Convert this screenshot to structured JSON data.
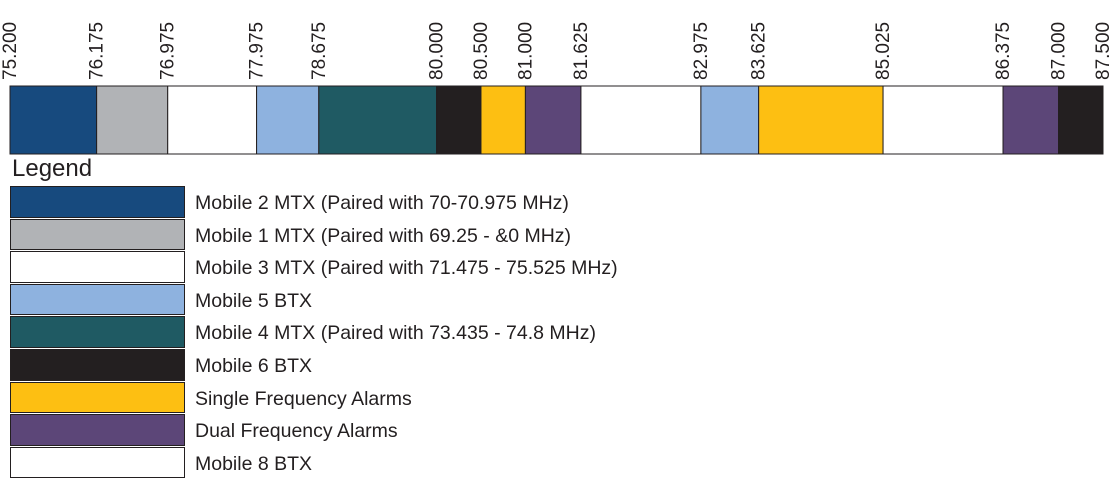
{
  "chart_data": {
    "type": "bar",
    "orientation": "horizontal-frequency-band",
    "xlim": [
      75.2,
      87.5
    ],
    "tick_labels": [
      "75.200",
      "76.175",
      "76.975",
      "77.975",
      "78.675",
      "80.000",
      "80.500",
      "81.000",
      "81.625",
      "82.975",
      "83.625",
      "85.025",
      "86.375",
      "87.000",
      "87.500"
    ],
    "segments": [
      {
        "start": 75.2,
        "end": 76.175,
        "category": "Mobile 2 MTX (Paired with 70-70.975 MHz)"
      },
      {
        "start": 76.175,
        "end": 76.975,
        "category": "Mobile 1 MTX (Paired with 69.25 - &0 MHz)"
      },
      {
        "start": 76.975,
        "end": 77.975,
        "category": "Mobile 3 MTX (Paired with 71.475 - 75.525 MHz)"
      },
      {
        "start": 77.975,
        "end": 78.675,
        "category": "Mobile 5 BTX"
      },
      {
        "start": 78.675,
        "end": 80.0,
        "category": "Mobile 4 MTX (Paired with 73.435 - 74.8 MHz)"
      },
      {
        "start": 80.0,
        "end": 80.5,
        "category": "Mobile 6 BTX"
      },
      {
        "start": 80.5,
        "end": 81.0,
        "category": "Single Frequency Alarms"
      },
      {
        "start": 81.0,
        "end": 81.625,
        "category": "Dual Frequency Alarms"
      },
      {
        "start": 81.625,
        "end": 82.975,
        "category": "Mobile 8 BTX"
      },
      {
        "start": 82.975,
        "end": 83.625,
        "category": "Mobile 5 BTX"
      },
      {
        "start": 83.625,
        "end": 85.025,
        "category": "Single Frequency Alarms"
      },
      {
        "start": 85.025,
        "end": 86.375,
        "category": "Mobile 8 BTX"
      },
      {
        "start": 86.375,
        "end": 87.0,
        "category": "Dual Frequency Alarms"
      },
      {
        "start": 87.0,
        "end": 87.5,
        "category": "Mobile 6 BTX"
      }
    ],
    "grid": false
  },
  "legend": {
    "title": "Legend",
    "entries": [
      {
        "label": "Mobile 2 MTX (Paired with 70-70.975 MHz)",
        "color": "#174a7e"
      },
      {
        "label": "Mobile 1 MTX (Paired with 69.25 - &0 MHz)",
        "color": "#b1b3b6"
      },
      {
        "label": "Mobile 3 MTX (Paired with 71.475 - 75.525 MHz)",
        "color": "#ffffff"
      },
      {
        "label": "Mobile 5 BTX",
        "color": "#8eb2df"
      },
      {
        "label": "Mobile 4 MTX (Paired with 73.435 - 74.8 MHz)",
        "color": "#1f5a63"
      },
      {
        "label": "Mobile 6 BTX",
        "color": "#231f20"
      },
      {
        "label": "Single Frequency Alarms",
        "color": "#fdbf12"
      },
      {
        "label": "Dual Frequency Alarms",
        "color": "#5c4678"
      },
      {
        "label": "Mobile 8 BTX",
        "color": "#ffffff"
      }
    ]
  }
}
